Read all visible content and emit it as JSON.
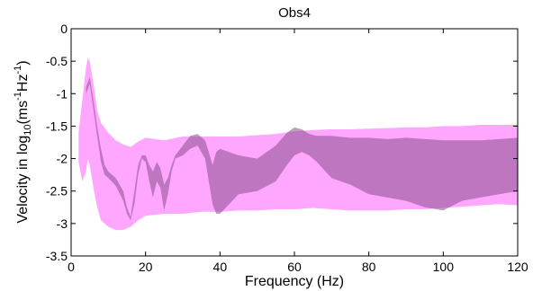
{
  "chart_data": {
    "type": "area",
    "title": "Obs4",
    "xlabel": "Frequency (Hz)",
    "ylabel": {
      "prefix": "Velocity in log",
      "sub": "10",
      "mid1": "(ms",
      "sup1": "-1",
      "mid2": "Hz",
      "sup2": "-1",
      "suffix": ")"
    },
    "xlim": [
      0,
      120
    ],
    "ylim": [
      -3.5,
      0
    ],
    "xticks": [
      0,
      20,
      40,
      60,
      80,
      100,
      120
    ],
    "yticks": [
      -3.5,
      -3,
      -2.5,
      -2,
      -1.5,
      -1,
      -0.5,
      0
    ],
    "grid": false,
    "bands": [
      {
        "color": "#ffa6ff",
        "opacity": 1,
        "x": [
          2,
          3,
          4,
          4.5,
          5,
          6,
          7,
          8,
          10,
          12,
          14,
          16,
          18,
          20,
          25,
          30,
          35,
          40,
          45,
          50,
          55,
          60,
          65,
          70,
          75,
          80,
          85,
          90,
          95,
          100,
          105,
          110,
          115,
          120
        ],
        "upper": [
          -1.6,
          -1.1,
          -0.6,
          -0.45,
          -0.5,
          -0.85,
          -1.25,
          -1.45,
          -1.6,
          -1.72,
          -1.78,
          -1.82,
          -1.74,
          -1.68,
          -1.72,
          -1.66,
          -1.66,
          -1.66,
          -1.66,
          -1.64,
          -1.62,
          -1.58,
          -1.56,
          -1.55,
          -1.55,
          -1.54,
          -1.53,
          -1.52,
          -1.52,
          -1.5,
          -1.5,
          -1.48,
          -1.48,
          -1.48
        ],
        "lower": [
          -2.05,
          -2.35,
          -2.2,
          -2.0,
          -2.1,
          -2.45,
          -2.75,
          -2.95,
          -3.05,
          -3.1,
          -3.1,
          -3.05,
          -2.95,
          -2.88,
          -2.85,
          -2.85,
          -2.82,
          -2.82,
          -2.8,
          -2.8,
          -2.78,
          -2.78,
          -2.76,
          -2.78,
          -2.8,
          -2.8,
          -2.8,
          -2.78,
          -2.78,
          -2.76,
          -2.74,
          -2.72,
          -2.7,
          -2.72
        ]
      },
      {
        "color": "#8a4e8c",
        "opacity": 0.55,
        "x": [
          4,
          5,
          6,
          7,
          8,
          9,
          10,
          12,
          14,
          15,
          16,
          17,
          18,
          19,
          20,
          21,
          22,
          23,
          24,
          25,
          26,
          27,
          28,
          30,
          32,
          34,
          36,
          37,
          38,
          39,
          40,
          45,
          50,
          55,
          58,
          60,
          62,
          64,
          66,
          70,
          75,
          80,
          85,
          90,
          95,
          100,
          105,
          110,
          115,
          120
        ],
        "upper": [
          -0.9,
          -0.75,
          -1.1,
          -1.5,
          -1.85,
          -2.1,
          -2.2,
          -2.3,
          -2.5,
          -2.75,
          -2.9,
          -2.5,
          -2.1,
          -1.95,
          -1.95,
          -2.1,
          -2.2,
          -2.05,
          -2.15,
          -2.4,
          -2.3,
          -2.1,
          -1.95,
          -1.8,
          -1.65,
          -1.62,
          -1.72,
          -1.9,
          -2.1,
          -1.9,
          -1.85,
          -1.95,
          -2.0,
          -1.8,
          -1.6,
          -1.52,
          -1.55,
          -1.62,
          -1.65,
          -1.65,
          -1.68,
          -1.68,
          -1.7,
          -1.68,
          -1.7,
          -1.72,
          -1.72,
          -1.72,
          -1.7,
          -1.68
        ],
        "lower": [
          -1.0,
          -0.85,
          -1.25,
          -1.65,
          -2.05,
          -2.25,
          -2.3,
          -2.42,
          -2.65,
          -2.85,
          -2.95,
          -2.7,
          -2.25,
          -2.0,
          -2.05,
          -2.35,
          -2.6,
          -2.35,
          -2.45,
          -2.8,
          -2.55,
          -2.2,
          -2.0,
          -1.95,
          -1.85,
          -1.8,
          -2.0,
          -2.35,
          -2.7,
          -2.85,
          -2.85,
          -2.55,
          -2.5,
          -2.35,
          -2.1,
          -1.95,
          -1.9,
          -1.95,
          -2.05,
          -2.3,
          -2.4,
          -2.55,
          -2.6,
          -2.65,
          -2.75,
          -2.8,
          -2.65,
          -2.6,
          -2.55,
          -2.5
        ]
      }
    ]
  }
}
